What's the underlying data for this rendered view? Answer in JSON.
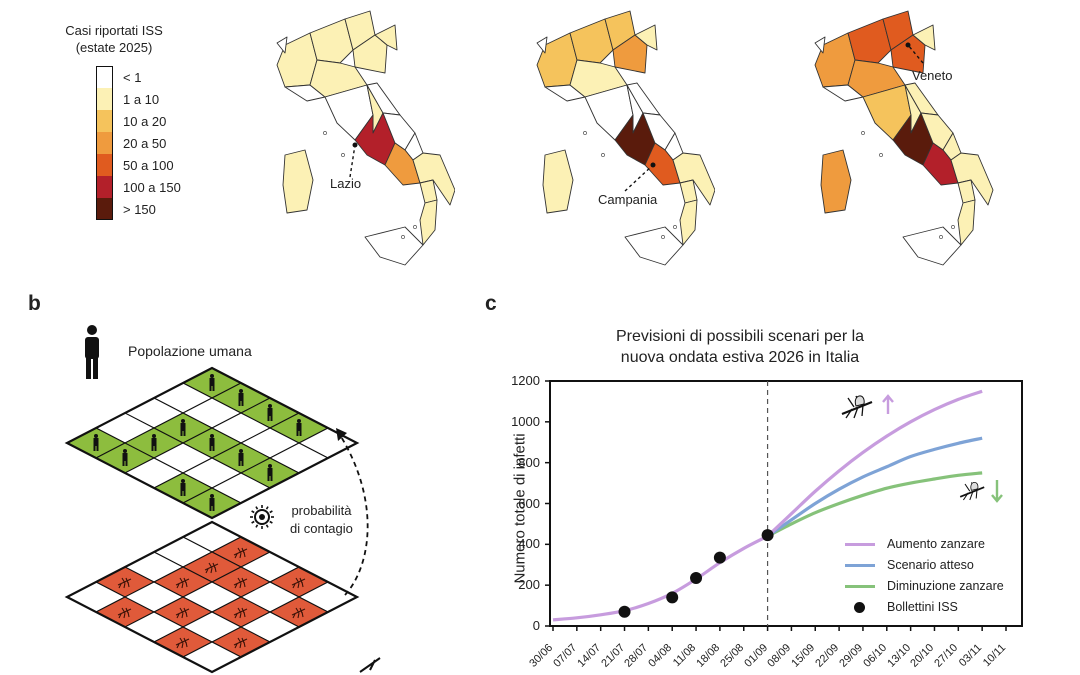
{
  "panel_a": {
    "legend": {
      "title_line1": "Casi riportati ISS",
      "title_line2": "(estate 2025)",
      "items": [
        {
          "label": "< 1",
          "color": "#ffffff"
        },
        {
          "label": "1 a 10",
          "color": "#fcf1b5"
        },
        {
          "label": "10 a 20",
          "color": "#f5c35c"
        },
        {
          "label": "20 a 50",
          "color": "#ef9b3e"
        },
        {
          "label": "50 a 100",
          "color": "#e05b1f"
        },
        {
          "label": "100 a 150",
          "color": "#b3202a"
        },
        {
          "label": "> 150",
          "color": "#5a1b0c"
        }
      ]
    },
    "maps": [
      {
        "annotation": "Lazio"
      },
      {
        "annotation": "Campania"
      },
      {
        "annotation": "Veneto"
      }
    ]
  },
  "panel_b": {
    "letter": "b",
    "population_label": "Popolazione umana",
    "probability_line1": "probabilità",
    "probability_line2": "di contagio",
    "colors": {
      "human_cell": "#8dbd3e",
      "mosquito_cell": "#e05a3a"
    }
  },
  "panel_c": {
    "letter": "c",
    "title_line1": "Previsioni di possibili scenari per la",
    "title_line2": "nuova ondata estiva 2026 in Italia",
    "chart_data": {
      "type": "line",
      "title": "Previsioni di possibili scenari per la nuova ondata estiva 2026 in Italia",
      "ylabel": "Numero totale di infetti",
      "ylim": [
        0,
        1200
      ],
      "yticks": [
        0,
        200,
        400,
        600,
        800,
        1000,
        1200
      ],
      "xticks": [
        "30/06",
        "07/07",
        "14/07",
        "21/07",
        "28/07",
        "04/08",
        "11/08",
        "18/08",
        "25/08",
        "01/09",
        "08/09",
        "15/09",
        "22/09",
        "29/09",
        "06/10",
        "13/10",
        "20/10",
        "27/10",
        "03/11",
        "10/11"
      ],
      "vertical_line_at": "01/09",
      "history": {
        "x": [
          "30/06",
          "07/07",
          "14/07",
          "21/07",
          "28/07",
          "04/08",
          "11/08",
          "18/08",
          "25/08",
          "01/09"
        ],
        "y": [
          30,
          40,
          55,
          75,
          110,
          160,
          230,
          310,
          380,
          440
        ]
      },
      "series": [
        {
          "name": "Aumento zanzare",
          "color": "#c79cde",
          "x": [
            "01/09",
            "08/09",
            "15/09",
            "22/09",
            "29/09",
            "06/10",
            "13/10",
            "20/10",
            "27/10",
            "03/11"
          ],
          "y": [
            440,
            550,
            660,
            760,
            850,
            930,
            1000,
            1060,
            1110,
            1150
          ]
        },
        {
          "name": "Scenario atteso",
          "color": "#7ea3d6",
          "x": [
            "01/09",
            "08/09",
            "15/09",
            "22/09",
            "29/09",
            "06/10",
            "13/10",
            "20/10",
            "27/10",
            "03/11"
          ],
          "y": [
            440,
            520,
            600,
            670,
            730,
            780,
            830,
            865,
            895,
            920
          ]
        },
        {
          "name": "Diminuzione zanzare",
          "color": "#86c27a",
          "x": [
            "01/09",
            "08/09",
            "15/09",
            "22/09",
            "29/09",
            "06/10",
            "13/10",
            "20/10",
            "27/10",
            "03/11"
          ],
          "y": [
            440,
            500,
            555,
            600,
            640,
            675,
            700,
            720,
            738,
            750
          ]
        }
      ],
      "points": {
        "name": "Bollettini ISS",
        "x": [
          "21/07",
          "04/08",
          "11/08",
          "18/08",
          "01/09"
        ],
        "y": [
          70,
          140,
          235,
          335,
          445
        ]
      },
      "legend_position": "bottom-right"
    }
  }
}
